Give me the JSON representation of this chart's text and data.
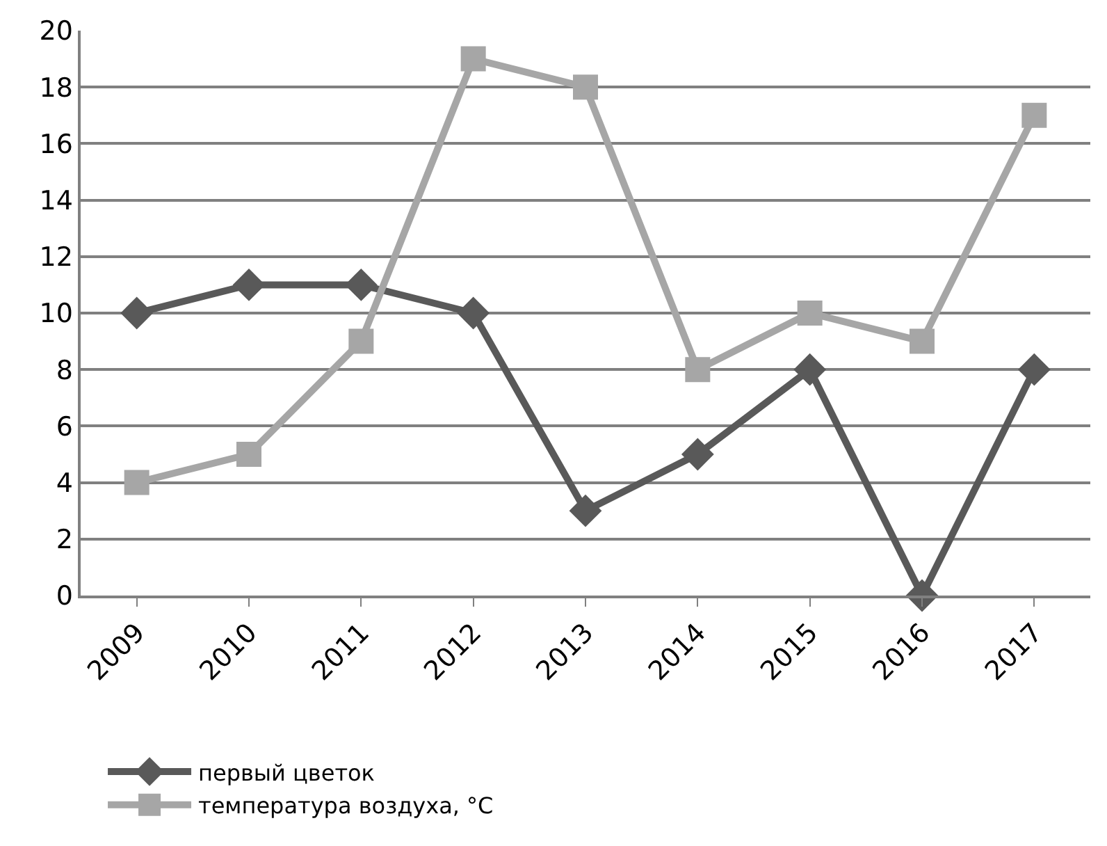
{
  "chart_data": {
    "type": "line",
    "categories": [
      "2009",
      "2010",
      "2011",
      "2012",
      "2013",
      "2014",
      "2015",
      "2016",
      "2017"
    ],
    "series": [
      {
        "name": "первый цветок",
        "color": "#595959",
        "marker": "diamond",
        "values": [
          10,
          11,
          11,
          10,
          3,
          5,
          8,
          0,
          8
        ]
      },
      {
        "name": "температура воздуха, °C",
        "color": "#a6a6a6",
        "marker": "square",
        "values": [
          4,
          5,
          9,
          19,
          18,
          8,
          10,
          9,
          17
        ]
      }
    ],
    "ylim": [
      0,
      20
    ],
    "yticks": [
      0,
      2,
      4,
      6,
      8,
      10,
      12,
      14,
      16,
      18,
      20
    ],
    "grid": "y",
    "legend": "bottom",
    "line_style": "solid"
  }
}
